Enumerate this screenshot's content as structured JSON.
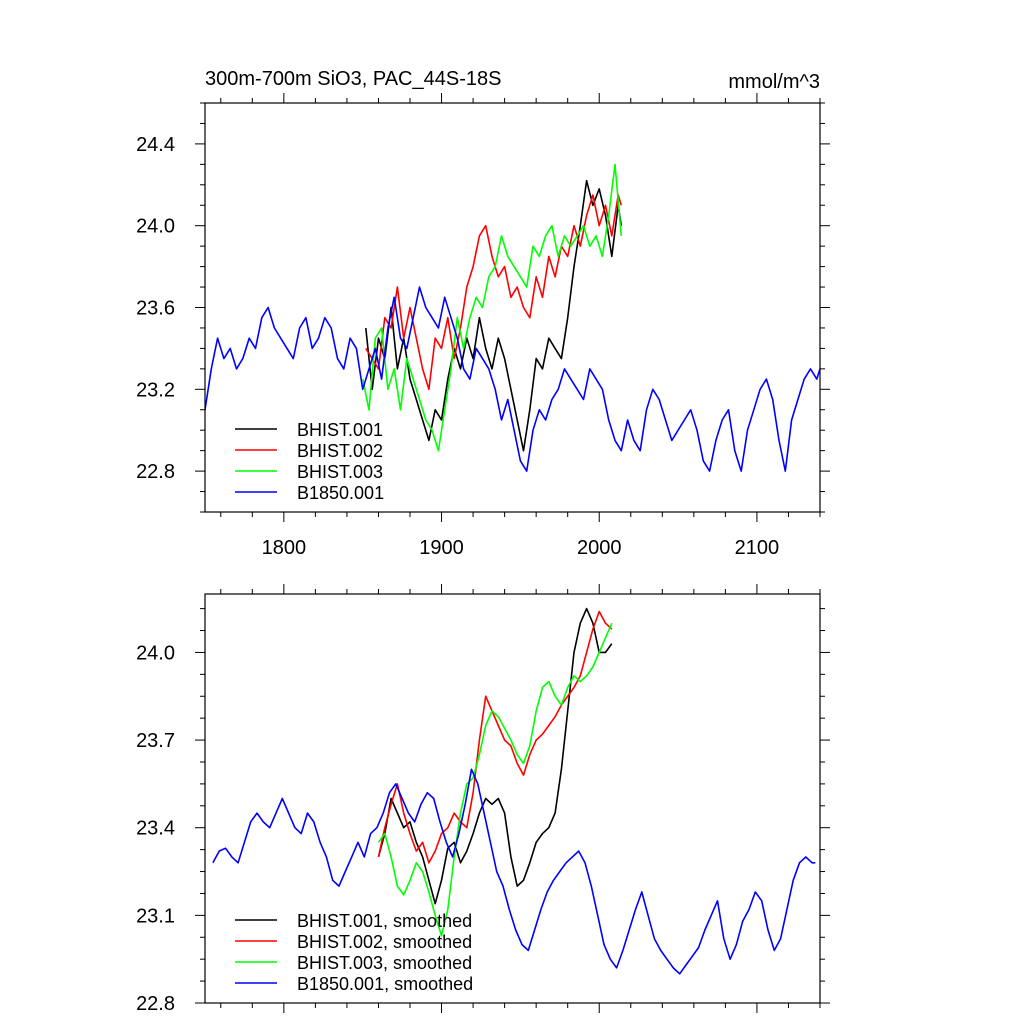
{
  "title_left": "300m-700m SiO3, PAC_44S-18S",
  "title_right": "mmol/m^3",
  "colors": {
    "BHIST.001": "#000000",
    "BHIST.002": "#ff0000",
    "BHIST.003": "#00ff00",
    "B1850.001": "#0000ff"
  },
  "chart_data": [
    {
      "type": "line",
      "panel": "top",
      "xlim": [
        1750,
        2140
      ],
      "ylim": [
        22.6,
        24.6
      ],
      "xticks": [
        1800,
        1900,
        2000,
        2100
      ],
      "xtick_labels": [
        "1800",
        "1900",
        "2000",
        "2100"
      ],
      "yticks": [
        22.8,
        23.2,
        23.6,
        24.0,
        24.4
      ],
      "ytick_labels": [
        "22.8",
        "23.2",
        "23.6",
        "24.0",
        "24.4"
      ],
      "legend_position": "bottom-left",
      "series": [
        {
          "name": "BHIST.001",
          "x": [
            1852,
            1856,
            1860,
            1864,
            1868,
            1872,
            1876,
            1880,
            1884,
            1888,
            1892,
            1896,
            1900,
            1904,
            1908,
            1912,
            1916,
            1920,
            1924,
            1928,
            1932,
            1936,
            1940,
            1944,
            1948,
            1952,
            1956,
            1960,
            1964,
            1968,
            1972,
            1976,
            1980,
            1984,
            1988,
            1992,
            1996,
            2000,
            2004,
            2008,
            2012,
            2014
          ],
          "y": [
            23.5,
            23.2,
            23.45,
            23.35,
            23.6,
            23.3,
            23.45,
            23.25,
            23.15,
            23.05,
            22.95,
            23.1,
            23.05,
            23.25,
            23.4,
            23.3,
            23.45,
            23.35,
            23.55,
            23.4,
            23.3,
            23.45,
            23.35,
            23.2,
            23.05,
            22.9,
            23.1,
            23.35,
            23.3,
            23.45,
            23.4,
            23.35,
            23.55,
            23.8,
            24.0,
            24.22,
            24.1,
            24.18,
            24.05,
            23.85,
            24.1,
            24.0
          ]
        },
        {
          "name": "BHIST.002",
          "x": [
            1852,
            1856,
            1860,
            1864,
            1868,
            1872,
            1876,
            1880,
            1884,
            1888,
            1892,
            1896,
            1900,
            1904,
            1908,
            1912,
            1916,
            1920,
            1924,
            1928,
            1932,
            1936,
            1940,
            1944,
            1948,
            1952,
            1956,
            1960,
            1964,
            1968,
            1972,
            1976,
            1980,
            1984,
            1988,
            1992,
            1996,
            2000,
            2004,
            2008,
            2012,
            2014
          ],
          "y": [
            23.4,
            23.35,
            23.3,
            23.55,
            23.5,
            23.7,
            23.45,
            23.6,
            23.45,
            23.3,
            23.2,
            23.45,
            23.4,
            23.55,
            23.35,
            23.5,
            23.7,
            23.8,
            23.95,
            24.0,
            23.85,
            23.75,
            23.8,
            23.65,
            23.7,
            23.6,
            23.55,
            23.75,
            23.65,
            23.85,
            23.75,
            23.9,
            23.85,
            24.0,
            23.9,
            24.05,
            24.15,
            24.0,
            24.1,
            23.95,
            24.15,
            24.1
          ]
        },
        {
          "name": "BHIST.003",
          "x": [
            1850,
            1854,
            1858,
            1862,
            1866,
            1870,
            1874,
            1878,
            1882,
            1886,
            1890,
            1894,
            1898,
            1902,
            1906,
            1910,
            1914,
            1918,
            1922,
            1926,
            1930,
            1934,
            1938,
            1942,
            1946,
            1950,
            1954,
            1958,
            1962,
            1966,
            1970,
            1974,
            1978,
            1982,
            1986,
            1990,
            1994,
            1998,
            2002,
            2006,
            2010,
            2014
          ],
          "y": [
            23.25,
            23.1,
            23.45,
            23.5,
            23.2,
            23.3,
            23.1,
            23.35,
            23.25,
            23.15,
            23.05,
            23.0,
            22.9,
            23.1,
            23.3,
            23.55,
            23.4,
            23.55,
            23.65,
            23.6,
            23.75,
            23.8,
            23.95,
            23.85,
            23.8,
            23.75,
            23.7,
            23.9,
            23.85,
            23.95,
            24.0,
            23.85,
            23.95,
            23.9,
            23.95,
            24.0,
            23.9,
            23.95,
            23.85,
            24.05,
            24.3,
            23.95
          ]
        },
        {
          "name": "B1850.001",
          "x": [
            1750,
            1754,
            1758,
            1762,
            1766,
            1770,
            1774,
            1778,
            1782,
            1786,
            1790,
            1794,
            1798,
            1802,
            1806,
            1810,
            1814,
            1818,
            1822,
            1826,
            1830,
            1834,
            1838,
            1842,
            1846,
            1850,
            1854,
            1858,
            1862,
            1866,
            1870,
            1874,
            1878,
            1882,
            1886,
            1890,
            1894,
            1898,
            1902,
            1906,
            1910,
            1914,
            1918,
            1922,
            1926,
            1930,
            1934,
            1938,
            1942,
            1946,
            1950,
            1954,
            1958,
            1962,
            1966,
            1970,
            1974,
            1978,
            1982,
            1986,
            1990,
            1994,
            1998,
            2002,
            2006,
            2010,
            2014,
            2018,
            2022,
            2026,
            2030,
            2034,
            2038,
            2042,
            2046,
            2050,
            2054,
            2058,
            2062,
            2066,
            2070,
            2074,
            2078,
            2082,
            2086,
            2090,
            2094,
            2098,
            2102,
            2106,
            2110,
            2114,
            2118,
            2122,
            2126,
            2130,
            2134,
            2138,
            2140
          ],
          "y": [
            23.1,
            23.3,
            23.45,
            23.35,
            23.4,
            23.3,
            23.35,
            23.45,
            23.4,
            23.55,
            23.6,
            23.5,
            23.45,
            23.4,
            23.35,
            23.5,
            23.55,
            23.4,
            23.45,
            23.55,
            23.5,
            23.35,
            23.3,
            23.45,
            23.4,
            23.2,
            23.3,
            23.4,
            23.25,
            23.5,
            23.65,
            23.45,
            23.4,
            23.55,
            23.7,
            23.6,
            23.55,
            23.5,
            23.65,
            23.55,
            23.45,
            23.3,
            23.25,
            23.4,
            23.35,
            23.3,
            23.2,
            23.05,
            23.15,
            23.0,
            22.85,
            22.8,
            23.0,
            23.1,
            23.05,
            23.15,
            23.2,
            23.3,
            23.25,
            23.2,
            23.15,
            23.3,
            23.25,
            23.2,
            23.05,
            22.95,
            22.9,
            23.05,
            22.95,
            22.9,
            23.1,
            23.2,
            23.15,
            23.05,
            22.95,
            23.0,
            23.05,
            23.1,
            23.0,
            22.85,
            22.8,
            22.95,
            23.05,
            23.1,
            22.9,
            22.8,
            23.0,
            23.1,
            23.2,
            23.25,
            23.15,
            22.95,
            22.8,
            23.05,
            23.15,
            23.25,
            23.3,
            23.25,
            23.3
          ]
        }
      ]
    },
    {
      "type": "line",
      "panel": "bottom",
      "xlim": [
        1750,
        2140
      ],
      "ylim": [
        22.8,
        24.2
      ],
      "xticks": [
        1800,
        1900,
        2000,
        2100
      ],
      "xtick_labels": [],
      "yticks": [
        22.8,
        23.1,
        23.4,
        23.7,
        24.0
      ],
      "ytick_labels": [
        "22.8",
        "23.1",
        "23.4",
        "23.7",
        "24.0"
      ],
      "legend_position": "bottom-left",
      "series": [
        {
          "name": "BHIST.001, smoothed",
          "x": [
            1860,
            1864,
            1868,
            1872,
            1876,
            1880,
            1884,
            1888,
            1892,
            1896,
            1900,
            1904,
            1908,
            1912,
            1916,
            1920,
            1924,
            1928,
            1932,
            1936,
            1940,
            1944,
            1948,
            1952,
            1956,
            1960,
            1964,
            1968,
            1972,
            1976,
            1980,
            1984,
            1988,
            1992,
            1996,
            2000,
            2004,
            2008
          ],
          "y": [
            23.3,
            23.38,
            23.5,
            23.45,
            23.4,
            23.42,
            23.35,
            23.3,
            23.22,
            23.14,
            23.22,
            23.33,
            23.35,
            23.28,
            23.32,
            23.38,
            23.45,
            23.5,
            23.48,
            23.5,
            23.45,
            23.3,
            23.2,
            23.22,
            23.28,
            23.35,
            23.38,
            23.4,
            23.45,
            23.6,
            23.8,
            24.0,
            24.1,
            24.15,
            24.1,
            24.0,
            24.0,
            24.03
          ]
        },
        {
          "name": "BHIST.002, smoothed",
          "x": [
            1860,
            1864,
            1868,
            1872,
            1876,
            1880,
            1884,
            1888,
            1892,
            1896,
            1900,
            1904,
            1908,
            1912,
            1916,
            1920,
            1924,
            1928,
            1932,
            1936,
            1940,
            1944,
            1948,
            1952,
            1956,
            1960,
            1964,
            1968,
            1972,
            1976,
            1980,
            1984,
            1988,
            1992,
            1996,
            2000,
            2004,
            2008
          ],
          "y": [
            23.3,
            23.4,
            23.48,
            23.55,
            23.45,
            23.38,
            23.32,
            23.35,
            23.28,
            23.32,
            23.38,
            23.4,
            23.45,
            23.42,
            23.4,
            23.52,
            23.7,
            23.85,
            23.8,
            23.75,
            23.7,
            23.68,
            23.62,
            23.58,
            23.65,
            23.7,
            23.72,
            23.75,
            23.78,
            23.82,
            23.85,
            23.88,
            23.92,
            24.0,
            24.08,
            24.14,
            24.1,
            24.08
          ]
        },
        {
          "name": "BHIST.003, smoothed",
          "x": [
            1860,
            1864,
            1868,
            1872,
            1876,
            1880,
            1884,
            1888,
            1892,
            1896,
            1900,
            1904,
            1908,
            1912,
            1916,
            1920,
            1924,
            1928,
            1932,
            1936,
            1940,
            1944,
            1948,
            1952,
            1956,
            1960,
            1964,
            1968,
            1972,
            1976,
            1980,
            1984,
            1988,
            1992,
            1996,
            2000,
            2004,
            2008
          ],
          "y": [
            23.35,
            23.38,
            23.3,
            23.2,
            23.17,
            23.22,
            23.28,
            23.25,
            23.18,
            23.1,
            23.03,
            23.12,
            23.3,
            23.45,
            23.55,
            23.57,
            23.65,
            23.75,
            23.8,
            23.78,
            23.74,
            23.7,
            23.65,
            23.62,
            23.68,
            23.8,
            23.88,
            23.9,
            23.85,
            23.82,
            23.88,
            23.92,
            23.9,
            23.92,
            23.95,
            24.0,
            24.05,
            24.1
          ]
        },
        {
          "name": "B1850.001, smoothed",
          "x": [
            1755,
            1759,
            1763,
            1767,
            1771,
            1775,
            1779,
            1783,
            1787,
            1791,
            1795,
            1799,
            1803,
            1807,
            1811,
            1815,
            1819,
            1823,
            1827,
            1831,
            1835,
            1839,
            1843,
            1847,
            1851,
            1855,
            1859,
            1863,
            1867,
            1871,
            1875,
            1879,
            1883,
            1887,
            1891,
            1895,
            1899,
            1903,
            1907,
            1911,
            1915,
            1919,
            1923,
            1927,
            1931,
            1935,
            1939,
            1943,
            1947,
            1951,
            1955,
            1959,
            1963,
            1967,
            1971,
            1975,
            1979,
            1983,
            1987,
            1991,
            1995,
            1999,
            2003,
            2007,
            2011,
            2015,
            2019,
            2023,
            2027,
            2031,
            2035,
            2039,
            2043,
            2047,
            2051,
            2055,
            2059,
            2063,
            2067,
            2071,
            2075,
            2079,
            2083,
            2087,
            2091,
            2095,
            2099,
            2103,
            2107,
            2111,
            2115,
            2119,
            2123,
            2127,
            2131,
            2135,
            2137
          ],
          "y": [
            23.28,
            23.32,
            23.33,
            23.3,
            23.28,
            23.35,
            23.42,
            23.45,
            23.42,
            23.4,
            23.45,
            23.5,
            23.45,
            23.4,
            23.38,
            23.45,
            23.42,
            23.35,
            23.3,
            23.22,
            23.2,
            23.25,
            23.3,
            23.35,
            23.3,
            23.38,
            23.4,
            23.45,
            23.52,
            23.55,
            23.5,
            23.45,
            23.42,
            23.48,
            23.52,
            23.5,
            23.42,
            23.35,
            23.3,
            23.38,
            23.48,
            23.6,
            23.55,
            23.45,
            23.35,
            23.25,
            23.2,
            23.12,
            23.05,
            23.0,
            22.98,
            23.05,
            23.12,
            23.18,
            23.22,
            23.25,
            23.28,
            23.3,
            23.32,
            23.28,
            23.2,
            23.1,
            23.0,
            22.95,
            22.92,
            22.98,
            23.05,
            23.12,
            23.18,
            23.1,
            23.02,
            22.98,
            22.95,
            22.92,
            22.9,
            22.93,
            22.96,
            22.99,
            23.05,
            23.1,
            23.15,
            23.02,
            22.95,
            23.0,
            23.08,
            23.12,
            23.18,
            23.15,
            23.05,
            22.98,
            23.02,
            23.12,
            23.22,
            23.28,
            23.3,
            23.28,
            23.28
          ]
        }
      ]
    }
  ]
}
